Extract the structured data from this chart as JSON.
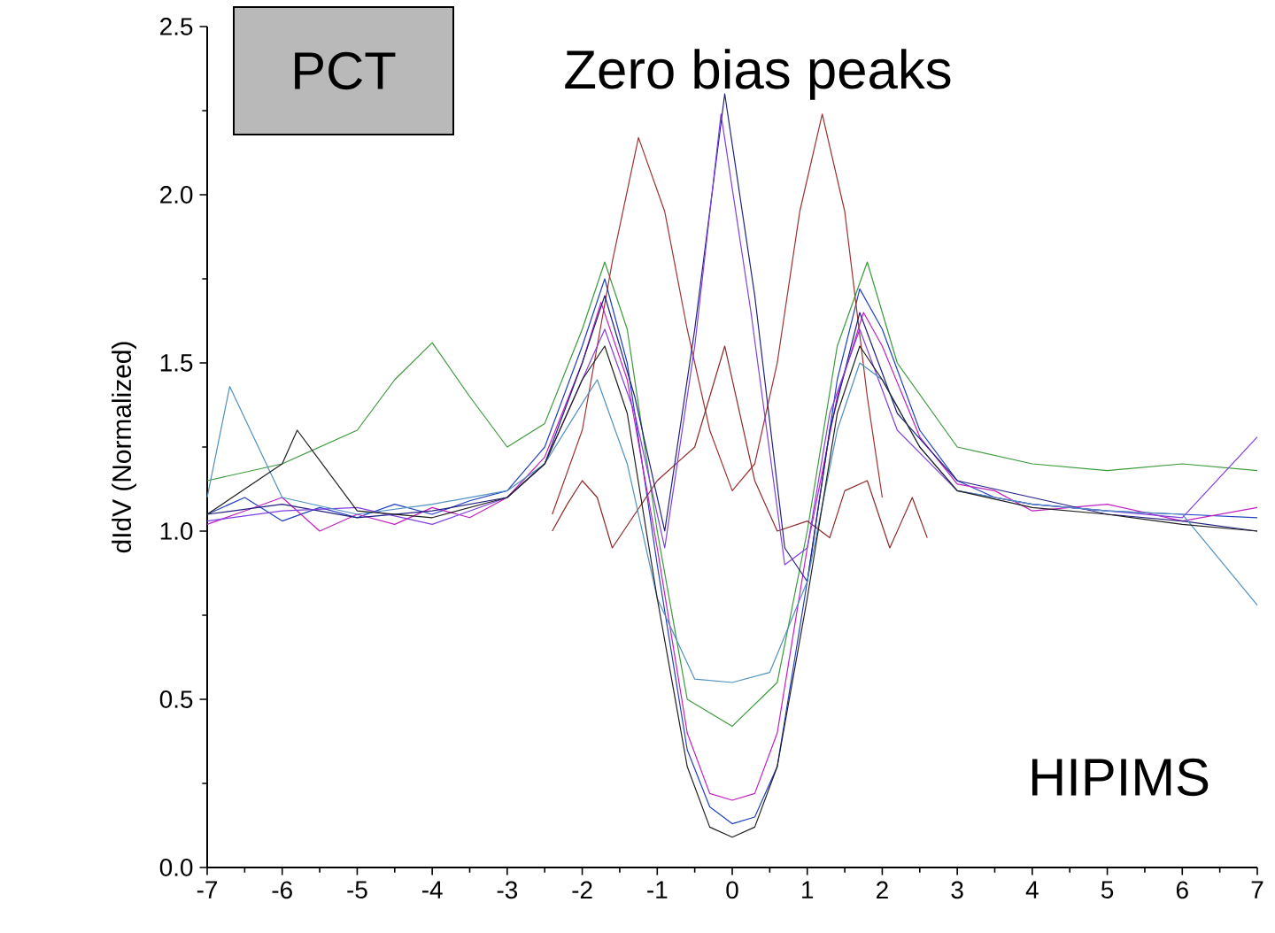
{
  "chart_data": {
    "type": "line",
    "ylabel": "dIdV (Normalized)",
    "annotations": [
      "PCT",
      "Zero bias peaks",
      "HIPIMS"
    ],
    "xlim": [
      -7,
      7
    ],
    "ylim": [
      0,
      2.5
    ],
    "xticks": [
      -7,
      -6,
      -5,
      -4,
      -3,
      -2,
      -1,
      0,
      1,
      2,
      3,
      4,
      5,
      6,
      7
    ],
    "yticks": [
      {
        "value": 0,
        "label": "0.0"
      },
      {
        "value": 0.5,
        "label": "0.5"
      },
      {
        "value": 1,
        "label": "1.0"
      },
      {
        "value": 1.5,
        "label": "1.5"
      },
      {
        "value": 2,
        "label": "2.0"
      },
      {
        "value": 2.5,
        "label": "2.5"
      }
    ],
    "series": [
      {
        "color": "#2040c0",
        "x": [
          -7,
          -6.5,
          -6,
          -5.5,
          -5,
          -4.5,
          -4,
          -3.5,
          -3,
          -2.5,
          -2,
          -1.7,
          -1.4,
          -1,
          -0.6,
          -0.3,
          0,
          0.3,
          0.6,
          1,
          1.4,
          1.7,
          2,
          2.5,
          3,
          3.5,
          4,
          5,
          6,
          7
        ],
        "values": [
          1.05,
          1.1,
          1.03,
          1.07,
          1.04,
          1.08,
          1.05,
          1.09,
          1.12,
          1.25,
          1.55,
          1.75,
          1.5,
          0.9,
          0.35,
          0.18,
          0.13,
          0.15,
          0.3,
          0.85,
          1.45,
          1.72,
          1.6,
          1.3,
          1.15,
          1.1,
          1.08,
          1.06,
          1.05,
          1.04
        ]
      },
      {
        "color": "#c020c0",
        "x": [
          -7,
          -6.5,
          -6,
          -5.5,
          -5,
          -4.5,
          -4,
          -3.5,
          -3,
          -2.5,
          -2,
          -1.75,
          -1.4,
          -1,
          -0.6,
          -0.3,
          0,
          0.3,
          0.6,
          1,
          1.4,
          1.75,
          2,
          2.5,
          3,
          3.5,
          4,
          5,
          6,
          7
        ],
        "values": [
          1.02,
          1.06,
          1.1,
          1.0,
          1.05,
          1.02,
          1.07,
          1.04,
          1.1,
          1.22,
          1.5,
          1.68,
          1.45,
          0.95,
          0.4,
          0.22,
          0.2,
          0.22,
          0.4,
          0.95,
          1.4,
          1.65,
          1.55,
          1.28,
          1.14,
          1.12,
          1.06,
          1.08,
          1.03,
          1.07
        ]
      },
      {
        "color": "#3a9a3a",
        "x": [
          -7,
          -6,
          -5,
          -4.5,
          -4,
          -3.5,
          -3,
          -2.5,
          -2,
          -1.7,
          -1.4,
          -1,
          -0.6,
          0,
          0.6,
          1,
          1.4,
          1.8,
          2.2,
          3,
          4,
          5,
          6,
          7
        ],
        "values": [
          1.15,
          1.2,
          1.3,
          1.45,
          1.56,
          1.4,
          1.25,
          1.32,
          1.6,
          1.8,
          1.6,
          1.0,
          0.5,
          0.42,
          0.55,
          1.0,
          1.55,
          1.8,
          1.5,
          1.25,
          1.2,
          1.18,
          1.2,
          1.18
        ]
      },
      {
        "color": "#a03030",
        "x": [
          -2.4,
          -2,
          -1.6,
          -1.25,
          -0.9,
          -0.6,
          -0.3,
          0,
          0.3,
          0.6,
          0.9,
          1.2,
          1.5,
          1.8,
          2.0
        ],
        "values": [
          1.05,
          1.3,
          1.8,
          2.17,
          1.95,
          1.6,
          1.3,
          1.12,
          1.2,
          1.5,
          1.95,
          2.24,
          1.95,
          1.4,
          1.1
        ]
      },
      {
        "color": "#902828",
        "x": [
          -2.4,
          -2.2,
          -2,
          -1.8,
          -1.6,
          -1.3,
          -1,
          -0.5,
          -0.1,
          0.3,
          0.6,
          1,
          1.3,
          1.5,
          1.8,
          2.1,
          2.4,
          2.6
        ],
        "values": [
          1.0,
          1.08,
          1.15,
          1.1,
          0.95,
          1.05,
          1.15,
          1.25,
          1.55,
          1.15,
          1.0,
          1.03,
          0.98,
          1.12,
          1.15,
          0.95,
          1.1,
          0.98
        ]
      },
      {
        "color": "#202080",
        "x": [
          -7,
          -6,
          -5,
          -4,
          -3,
          -2.5,
          -2,
          -1.7,
          -1.3,
          -0.9,
          -0.5,
          -0.1,
          0.3,
          0.7,
          1,
          1.3,
          1.7,
          2.2,
          3,
          4,
          5,
          6,
          7
        ],
        "values": [
          1.05,
          1.08,
          1.04,
          1.06,
          1.1,
          1.2,
          1.5,
          1.7,
          1.4,
          1.0,
          1.6,
          2.3,
          1.7,
          0.95,
          0.85,
          1.3,
          1.65,
          1.35,
          1.15,
          1.1,
          1.05,
          1.03,
          1.0
        ]
      },
      {
        "color": "#8040e0",
        "x": [
          -7,
          -6,
          -5,
          -4,
          -3,
          -2.5,
          -2,
          -1.7,
          -1.3,
          -0.9,
          -0.5,
          -0.15,
          0.25,
          0.7,
          1,
          1.3,
          1.7,
          2.2,
          3,
          4,
          5,
          6,
          7
        ],
        "values": [
          1.03,
          1.06,
          1.07,
          1.02,
          1.1,
          1.2,
          1.45,
          1.6,
          1.35,
          0.95,
          1.55,
          2.24,
          1.65,
          0.9,
          0.95,
          1.35,
          1.6,
          1.3,
          1.12,
          1.08,
          1.06,
          1.04,
          1.28
        ]
      },
      {
        "color": "#5090c0",
        "x": [
          -7,
          -6.7,
          -6,
          -5,
          -4,
          -3,
          -2.5,
          -2,
          -1.8,
          -1.4,
          -1,
          -0.5,
          0,
          0.5,
          1,
          1.4,
          1.7,
          2,
          2.5,
          3,
          4,
          5,
          6,
          7
        ],
        "values": [
          1.1,
          1.43,
          1.1,
          1.05,
          1.08,
          1.12,
          1.2,
          1.38,
          1.45,
          1.2,
          0.8,
          0.56,
          0.55,
          0.58,
          0.85,
          1.3,
          1.5,
          1.45,
          1.25,
          1.12,
          1.08,
          1.06,
          1.05,
          0.78
        ]
      },
      {
        "color": "#202020",
        "x": [
          -7,
          -6,
          -5.8,
          -5,
          -4,
          -3,
          -2.5,
          -2,
          -1.7,
          -1.4,
          -1,
          -0.6,
          -0.3,
          0,
          0.3,
          0.6,
          1,
          1.4,
          1.7,
          2,
          2.5,
          3,
          4,
          5,
          6,
          7
        ],
        "values": [
          1.05,
          1.2,
          1.3,
          1.06,
          1.04,
          1.1,
          1.2,
          1.45,
          1.55,
          1.35,
          0.8,
          0.3,
          0.12,
          0.09,
          0.12,
          0.3,
          0.8,
          1.35,
          1.55,
          1.45,
          1.25,
          1.12,
          1.07,
          1.05,
          1.02,
          1.0
        ]
      }
    ]
  }
}
